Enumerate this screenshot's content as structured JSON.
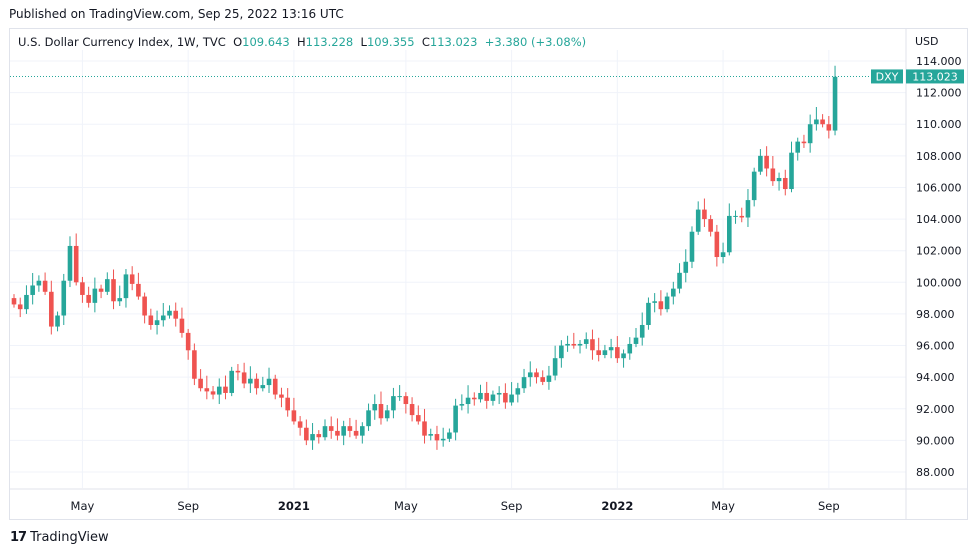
{
  "header": {
    "published": "Published on TradingView.com, Sep 25, 2022 13:16 UTC"
  },
  "legend": {
    "symbol": "U.S. Dollar Currency Index, 1W, TVC",
    "o_key": "O",
    "o_val": "109.643",
    "h_key": "H",
    "h_val": "113.228",
    "l_key": "L",
    "l_val": "109.355",
    "c_key": "C",
    "c_val": "113.023",
    "change": "+3.380 (+3.08%)"
  },
  "currency_label": "USD",
  "price_tag": {
    "symbol": "DXY",
    "value": "113.023"
  },
  "footer": {
    "logo": "17",
    "brand": "TradingView"
  },
  "chart_data": {
    "type": "candlestick",
    "ylim": [
      86.5,
      114.5
    ],
    "y_ticks": [
      "88.000",
      "90.000",
      "92.000",
      "94.000",
      "96.000",
      "98.000",
      "100.000",
      "102.000",
      "104.000",
      "106.000",
      "108.000",
      "110.000",
      "112.000",
      "114.000"
    ],
    "y_tick_values": [
      88,
      90,
      92,
      94,
      96,
      98,
      100,
      102,
      104,
      106,
      108,
      110,
      112,
      114
    ],
    "x_ticks": [
      {
        "label": "May",
        "bold": false,
        "week": 11
      },
      {
        "label": "Sep",
        "bold": false,
        "week": 28
      },
      {
        "label": "2021",
        "bold": true,
        "week": 45
      },
      {
        "label": "May",
        "bold": false,
        "week": 63
      },
      {
        "label": "Sep",
        "bold": false,
        "week": 80
      },
      {
        "label": "2022",
        "bold": true,
        "week": 97
      },
      {
        "label": "May",
        "bold": false,
        "week": 114
      },
      {
        "label": "Sep",
        "bold": false,
        "week": 131
      }
    ],
    "last_price": 113.023,
    "colors": {
      "up": "#26a69a",
      "down": "#ef5350",
      "grid": "#f0f3fa",
      "axis_text": "#131722"
    },
    "closes": [
      98.6,
      98.3,
      99.2,
      99.8,
      100.1,
      99.4,
      97.2,
      97.9,
      100.1,
      102.3,
      100.0,
      99.2,
      98.7,
      99.6,
      99.4,
      100.2,
      98.8,
      99.0,
      100.5,
      99.9,
      99.1,
      97.9,
      97.3,
      97.6,
      97.9,
      98.2,
      97.7,
      96.8,
      95.7,
      93.9,
      93.3,
      93.1,
      92.9,
      93.4,
      93.0,
      94.4,
      94.3,
      93.6,
      93.9,
      93.3,
      93.5,
      93.9,
      92.9,
      92.7,
      91.9,
      91.2,
      90.8,
      90.0,
      90.4,
      90.2,
      90.9,
      90.6,
      90.3,
      90.9,
      90.6,
      90.3,
      90.9,
      91.9,
      92.3,
      91.4,
      91.9,
      92.8,
      92.8,
      92.3,
      91.6,
      91.2,
      90.3,
      90.4,
      90.0,
      90.1,
      90.5,
      92.2,
      92.3,
      92.7,
      92.6,
      93.0,
      92.5,
      92.9,
      93.0,
      92.4,
      92.9,
      93.3,
      94.0,
      94.3,
      94.0,
      93.7,
      94.1,
      95.2,
      96.0,
      96.1,
      96.0,
      96.1,
      96.4,
      95.7,
      95.4,
      95.7,
      95.9,
      95.2,
      95.5,
      96.1,
      96.5,
      97.3,
      98.7,
      98.8,
      98.3,
      99.1,
      99.6,
      100.6,
      101.3,
      103.2,
      104.6,
      104.0,
      103.2,
      101.6,
      101.9,
      104.2,
      104.2,
      104.1,
      105.2,
      107.0,
      108.0,
      107.2,
      106.4,
      106.6,
      105.9,
      108.2,
      108.9,
      108.8,
      110.0,
      110.3,
      110.0,
      109.6,
      113.0
    ],
    "opens_note": "open of each candle equals previous close"
  }
}
